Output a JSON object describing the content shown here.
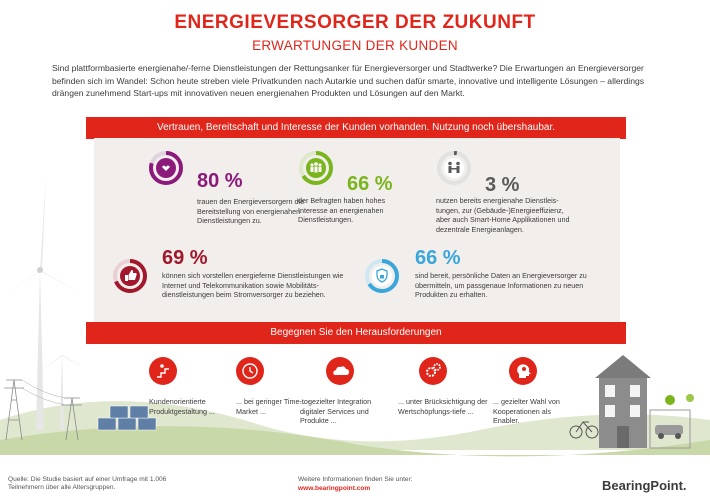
{
  "header": {
    "title": "ENERGIEVERSORGER DER ZUKUNFT",
    "subtitle": "ERWARTUNGEN DER KUNDEN"
  },
  "intro": "Sind plattformbasierte energienahe/-ferne Dienstleistungen der Rettungsanker für Energieversorger und Stadtwerke? Die Erwartungen an Energieversorger befinden sich im Wandel: Schon heute streben viele Privatkunden nach Autarkie und suchen dafür smarte, innovative und intelligente Lösungen – allerdings drängen zunehmend Start-ups mit innovativen neuen energienahen Produkten und Lösungen auf den Markt.",
  "banner1": "Vertrauen, Bereitschaft und Interesse der Kunden vorhanden. Nutzung noch übershaubar.",
  "banner2": "Begegnen Sie den Herausforderungen",
  "stats": [
    {
      "value": "80 %",
      "text": "trauen den Energieversorgern die Bereitstellung von energienahen Dienstleistungen zu.",
      "color": "#8b1a7a",
      "icon": "hand-heart-icon",
      "fraction": 0.8
    },
    {
      "value": "66 %",
      "text": "der Befragten haben hohes Interesse an energienahen Dienstleistungen.",
      "color": "#7ab51d",
      "icon": "people-group-icon",
      "fraction": 0.66
    },
    {
      "value": "3 %",
      "text": "nutzen bereits energienahe Dienstleis-tungen, zur (Gebäude-)Energieeffizienz, aber auch Smart-Home Applikationen und dezentrale Energieanlagen.",
      "color": "#5a5a5a",
      "icon": "handshake-icon",
      "fraction": 0.03
    },
    {
      "value": "69 %",
      "text": "können sich vorstellen energieferne Dienstleistungen wie Internet und Telekommunikation sowie Mobilitäts-dienstleistungen beim Stromversorger zu beziehen.",
      "color": "#a2172b",
      "icon": "thumbs-up-icon",
      "fraction": 0.69
    },
    {
      "value": "66 %",
      "text": "sind bereit, persönliche Daten an Energieversorger zu übermitteln, um passgenaue Informationen zu neuen Produkten zu erhalten.",
      "color": "#3aa6d9",
      "icon": "shield-lock-icon",
      "fraction": 0.66
    }
  ],
  "challenges": [
    {
      "text": "Kundenorientierte Produktgestaltung ...",
      "icon": "person-rising-icon"
    },
    {
      "text": "... bei geringer Time-to-Market ...",
      "icon": "clock-icon"
    },
    {
      "text": "... gezielter Integration digitaler Services und Produkte ...",
      "icon": "cloud-icon"
    },
    {
      "text": "... unter Brücksichtigung der Wertschöpfungs-tiefe ...",
      "icon": "gears-icon"
    },
    {
      "text": "... gezielter Wahl von Kooperationen als Enabler.",
      "icon": "head-bulb-icon"
    }
  ],
  "footer": {
    "source": "Quelle: Die Studie basiert auf einer Umfrage mit 1.006 Teilnehmern über alle Altersgruppen.",
    "more_info": "Weitere Informationen finden Sie unter:",
    "url": "www.bearingpoint.com",
    "logo": "BearingPoint."
  },
  "colors": {
    "accent": "#e0261b",
    "panel": "#f1eeec",
    "green": "#7ab51d"
  }
}
